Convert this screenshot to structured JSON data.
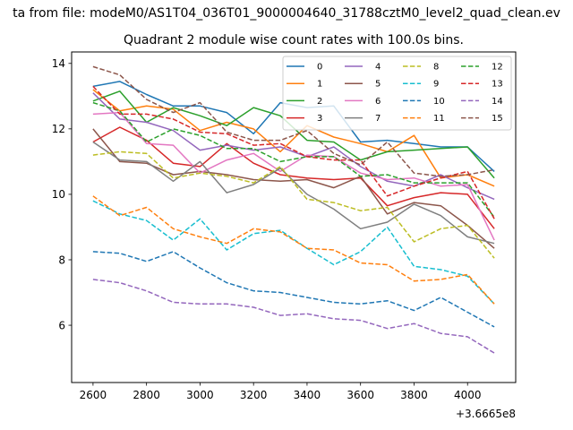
{
  "chart_data": {
    "type": "line",
    "suptitle": "ta from file: modeM0/AS1T04_036T01_9000004640_31788cztM0_level2_quad_clean.ev",
    "title": "Quadrant 2 module wise count rates with 100.0s bins.",
    "xlabel": "",
    "ylabel": "",
    "x_offset_label": "+3.6665e8",
    "xlim": [
      2520,
      4180
    ],
    "ylim": [
      4.25,
      14.35
    ],
    "xticks": [
      2600,
      2800,
      3000,
      3200,
      3400,
      3600,
      3800,
      4000
    ],
    "yticks": [
      6,
      8,
      10,
      12,
      14
    ],
    "x": [
      2600,
      2700,
      2800,
      2900,
      3000,
      3100,
      3200,
      3300,
      3400,
      3500,
      3600,
      3700,
      3800,
      3900,
      4000,
      4100
    ],
    "legend": {
      "location": "top-right",
      "columns": 4
    },
    "series": [
      {
        "name": "0",
        "color": "#1f77b4",
        "dash": "solid",
        "values": [
          13.3,
          13.45,
          13.05,
          12.7,
          12.7,
          12.5,
          11.85,
          12.8,
          12.65,
          12.7,
          11.6,
          11.65,
          11.55,
          11.45,
          11.45,
          10.7
        ]
      },
      {
        "name": "1",
        "color": "#ff7f0e",
        "dash": "solid",
        "values": [
          13.2,
          12.55,
          12.7,
          12.6,
          11.95,
          12.2,
          12.0,
          11.3,
          12.1,
          11.75,
          11.55,
          11.3,
          11.8,
          10.5,
          10.6,
          10.25
        ]
      },
      {
        "name": "2",
        "color": "#2ca02c",
        "dash": "solid",
        "values": [
          12.85,
          13.15,
          12.2,
          12.65,
          12.4,
          12.1,
          12.65,
          12.4,
          11.65,
          11.6,
          11.05,
          11.3,
          11.35,
          11.4,
          11.45,
          10.5
        ]
      },
      {
        "name": "3",
        "color": "#d62728",
        "dash": "solid",
        "values": [
          11.6,
          12.05,
          11.65,
          10.95,
          10.85,
          11.55,
          10.95,
          10.6,
          10.5,
          10.45,
          10.5,
          9.65,
          9.9,
          10.05,
          10.0,
          8.95
        ]
      },
      {
        "name": "4",
        "color": "#9467bd",
        "dash": "solid",
        "values": [
          13.1,
          12.3,
          12.2,
          11.95,
          11.35,
          11.5,
          11.35,
          11.45,
          11.15,
          11.45,
          10.85,
          10.4,
          10.25,
          10.6,
          10.2,
          9.85
        ]
      },
      {
        "name": "5",
        "color": "#8c564b",
        "dash": "solid",
        "values": [
          12.0,
          11.0,
          10.95,
          10.6,
          10.7,
          10.6,
          10.45,
          10.4,
          10.45,
          10.2,
          10.55,
          9.4,
          9.75,
          9.65,
          9.05,
          8.35
        ]
      },
      {
        "name": "6",
        "color": "#e377c2",
        "dash": "solid",
        "values": [
          12.45,
          12.5,
          11.55,
          11.5,
          10.65,
          11.05,
          11.25,
          10.7,
          11.2,
          11.15,
          10.65,
          10.45,
          10.5,
          10.25,
          10.3,
          8.6
        ]
      },
      {
        "name": "7",
        "color": "#7f7f7f",
        "dash": "solid",
        "values": [
          11.6,
          11.05,
          11.0,
          10.4,
          11.0,
          10.05,
          10.3,
          10.8,
          10.0,
          9.55,
          8.95,
          9.15,
          9.7,
          9.35,
          8.7,
          8.5
        ]
      },
      {
        "name": "8",
        "color": "#bcbd22",
        "dash": "dashed",
        "values": [
          11.2,
          11.3,
          11.25,
          10.5,
          10.65,
          10.55,
          10.35,
          10.85,
          9.85,
          9.75,
          9.5,
          9.6,
          8.55,
          8.95,
          9.05,
          8.05
        ]
      },
      {
        "name": "9",
        "color": "#17becf",
        "dash": "dashed",
        "values": [
          9.8,
          9.4,
          9.2,
          8.6,
          9.25,
          8.3,
          8.8,
          8.9,
          8.35,
          7.85,
          8.25,
          9.0,
          7.8,
          7.7,
          7.5,
          6.65
        ]
      },
      {
        "name": "10",
        "color": "#1f77b4",
        "dash": "dashed",
        "values": [
          8.25,
          8.2,
          7.95,
          8.25,
          7.75,
          7.3,
          7.05,
          7.0,
          6.85,
          6.7,
          6.65,
          6.75,
          6.45,
          6.85,
          6.4,
          5.95
        ]
      },
      {
        "name": "11",
        "color": "#ff7f0e",
        "dash": "dashed",
        "values": [
          9.95,
          9.35,
          9.6,
          8.95,
          8.7,
          8.5,
          8.95,
          8.85,
          8.35,
          8.3,
          7.9,
          7.85,
          7.35,
          7.4,
          7.55,
          6.65
        ]
      },
      {
        "name": "12",
        "color": "#2ca02c",
        "dash": "dashed",
        "values": [
          12.8,
          12.55,
          11.6,
          12.0,
          11.8,
          11.4,
          11.4,
          11.0,
          11.15,
          11.15,
          10.55,
          10.6,
          10.35,
          10.35,
          10.35,
          9.3
        ]
      },
      {
        "name": "13",
        "color": "#d62728",
        "dash": "dashed",
        "values": [
          13.3,
          12.45,
          12.45,
          12.3,
          11.9,
          11.85,
          11.5,
          11.55,
          11.15,
          11.05,
          11.05,
          9.95,
          10.25,
          10.5,
          10.7,
          9.25
        ]
      },
      {
        "name": "14",
        "color": "#9467bd",
        "dash": "dashed",
        "values": [
          7.4,
          7.3,
          7.05,
          6.7,
          6.65,
          6.65,
          6.55,
          6.3,
          6.35,
          6.2,
          6.15,
          5.9,
          6.05,
          5.75,
          5.65,
          5.15
        ]
      },
      {
        "name": "15",
        "color": "#8c564b",
        "dash": "dashed",
        "values": [
          13.9,
          13.65,
          12.9,
          12.5,
          12.8,
          11.9,
          11.65,
          11.65,
          11.95,
          11.25,
          10.9,
          11.6,
          10.65,
          10.55,
          10.6,
          10.75
        ]
      }
    ]
  }
}
